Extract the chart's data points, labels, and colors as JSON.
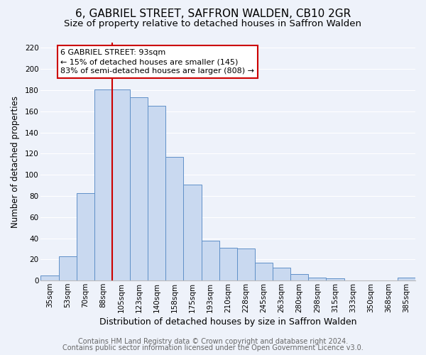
{
  "title": "6, GABRIEL STREET, SAFFRON WALDEN, CB10 2GR",
  "subtitle": "Size of property relative to detached houses in Saffron Walden",
  "xlabel": "Distribution of detached houses by size in Saffron Walden",
  "ylabel": "Number of detached properties",
  "bar_labels": [
    "35sqm",
    "53sqm",
    "70sqm",
    "88sqm",
    "105sqm",
    "123sqm",
    "140sqm",
    "158sqm",
    "175sqm",
    "193sqm",
    "210sqm",
    "228sqm",
    "245sqm",
    "263sqm",
    "280sqm",
    "298sqm",
    "315sqm",
    "333sqm",
    "350sqm",
    "368sqm",
    "385sqm"
  ],
  "bar_heights": [
    5,
    23,
    83,
    181,
    181,
    173,
    165,
    117,
    91,
    38,
    31,
    30,
    17,
    12,
    6,
    3,
    2,
    0,
    0,
    0,
    3
  ],
  "bar_color": "#c9d9f0",
  "bar_edge_color": "#6090c8",
  "vline_x": 3.5,
  "vline_color": "#cc0000",
  "ylim": [
    0,
    225
  ],
  "yticks": [
    0,
    20,
    40,
    60,
    80,
    100,
    120,
    140,
    160,
    180,
    200,
    220
  ],
  "annotation_box_text": "6 GABRIEL STREET: 93sqm\n← 15% of detached houses are smaller (145)\n83% of semi-detached houses are larger (808) →",
  "annotation_box_color": "#cc0000",
  "footer_line1": "Contains HM Land Registry data © Crown copyright and database right 2024.",
  "footer_line2": "Contains public sector information licensed under the Open Government Licence v3.0.",
  "background_color": "#eef2fa",
  "grid_color": "#ffffff",
  "title_fontsize": 11,
  "subtitle_fontsize": 9.5,
  "xlabel_fontsize": 9,
  "ylabel_fontsize": 8.5,
  "tick_fontsize": 7.5,
  "annot_fontsize": 8,
  "footer_fontsize": 7
}
